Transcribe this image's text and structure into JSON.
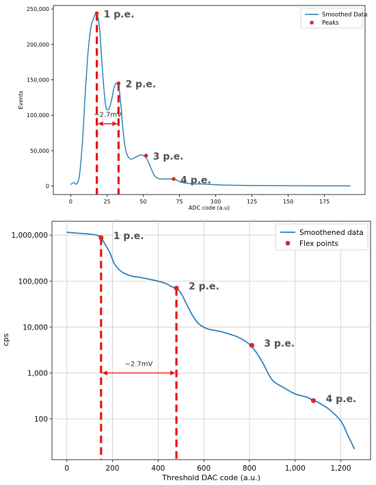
{
  "colors": {
    "line": "#1f77b4",
    "marker": "#d62728",
    "dash": "#e8110f",
    "grid": "#d0d0d0",
    "label": "#505050"
  },
  "chart_data": [
    {
      "type": "line",
      "xlabel": "ADC code (a.u)",
      "ylabel": "Events",
      "xlim": [
        -12,
        203
      ],
      "ylim": [
        -12000,
        255000
      ],
      "xticks": [
        0,
        25,
        50,
        75,
        100,
        125,
        150,
        175
      ],
      "xtick_labels": [
        "0",
        "25",
        "50",
        "75",
        "100",
        "125",
        "150",
        "175"
      ],
      "yticks": [
        0,
        50000,
        100000,
        150000,
        200000,
        250000
      ],
      "ytick_labels": [
        "0",
        "50,000",
        "100,000",
        "150,000",
        "200,000",
        "250,000"
      ],
      "grid": false,
      "legend_position": "top-right",
      "series": [
        {
          "name": "Smoothed Data",
          "kind": "line",
          "x": [
            0,
            2,
            4,
            6,
            8,
            10,
            12,
            14,
            16,
            18,
            20,
            22,
            24,
            26,
            28,
            30,
            32,
            34,
            36,
            38,
            40,
            42,
            44,
            46,
            48,
            50,
            52,
            54,
            56,
            58,
            60,
            62,
            64,
            66,
            68,
            70,
            72,
            74,
            76,
            80,
            85,
            90,
            95,
            100,
            110,
            125,
            150,
            175,
            193
          ],
          "y": [
            2000,
            5000,
            3000,
            15000,
            60000,
            130000,
            190000,
            225000,
            238000,
            244000,
            220000,
            160000,
            115000,
            108000,
            120000,
            140000,
            145000,
            128000,
            80000,
            50000,
            40000,
            38000,
            40000,
            42000,
            44000,
            43000,
            40000,
            32000,
            22000,
            14000,
            11000,
            10000,
            10000,
            10000,
            10000,
            10000,
            9500,
            7500,
            5500,
            4000,
            3000,
            3000,
            2500,
            1800,
            1200,
            800,
            500,
            300,
            200
          ]
        },
        {
          "name": "Peaks",
          "kind": "scatter",
          "x": [
            18,
            33,
            52,
            71
          ],
          "y": [
            244000,
            145000,
            43000,
            10000
          ]
        }
      ],
      "annotations": [
        {
          "text": "1 p.e.",
          "x": 18,
          "y": 244000
        },
        {
          "text": "2 p.e.",
          "x": 33,
          "y": 145000
        },
        {
          "text": "3 p.e.",
          "x": 52,
          "y": 43000
        },
        {
          "text": "4 p.e.",
          "x": 71,
          "y": 10000
        },
        {
          "text": "~2.7mV",
          "x": 25.5,
          "y": 88000
        }
      ],
      "dashed_lines_x": [
        18,
        33
      ]
    },
    {
      "type": "line",
      "xlabel": "Threshold DAC code (a.u.)",
      "ylabel": "cps",
      "xlim": [
        -65,
        1330
      ],
      "ylim": [
        13,
        2000000
      ],
      "yscale": "log",
      "xticks": [
        0,
        200,
        400,
        600,
        800,
        1000,
        1200
      ],
      "xtick_labels": [
        "0",
        "200",
        "400",
        "600",
        "800",
        "1,000",
        "1,200"
      ],
      "yticks": [
        100,
        1000,
        10000,
        100000,
        1000000
      ],
      "ytick_labels": [
        "100",
        "1,000",
        "10,000",
        "100,000",
        "1,000,000"
      ],
      "grid": true,
      "legend_position": "top-right",
      "series": [
        {
          "name": "Smoothened data",
          "kind": "line",
          "x": [
            0,
            50,
            100,
            130,
            150,
            170,
            190,
            210,
            240,
            280,
            320,
            380,
            430,
            460,
            480,
            500,
            520,
            550,
            580,
            620,
            680,
            750,
            800,
            830,
            860,
            900,
            950,
            1000,
            1050,
            1080,
            1100,
            1150,
            1200,
            1230,
            1260
          ],
          "y": [
            1150000,
            1100000,
            1050000,
            1000000,
            880000,
            600000,
            400000,
            230000,
            160000,
            130000,
            120000,
            105000,
            90000,
            75000,
            70000,
            55000,
            35000,
            18000,
            11500,
            9000,
            7800,
            6000,
            4200,
            2800,
            1600,
            700,
            480,
            350,
            300,
            250,
            230,
            160,
            90,
            45,
            22
          ]
        },
        {
          "name": "Flex points",
          "kind": "scatter",
          "x": [
            150,
            480,
            810,
            1080
          ],
          "y": [
            880000,
            70000,
            4000,
            250
          ]
        }
      ],
      "annotations": [
        {
          "text": "1 p.e.",
          "x": 150,
          "y": 880000
        },
        {
          "text": "2 p.e.",
          "x": 480,
          "y": 70000
        },
        {
          "text": "3 p.e.",
          "x": 810,
          "y": 4000
        },
        {
          "text": "4 p.e.",
          "x": 1080,
          "y": 250
        },
        {
          "text": "~2.7mV",
          "x": 315,
          "y": 1000
        }
      ],
      "dashed_lines_x": [
        150,
        480
      ]
    }
  ]
}
